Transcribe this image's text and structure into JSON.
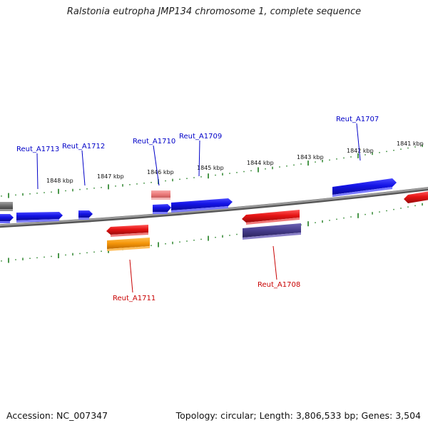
{
  "title": "Ralstonia eutropha JMP134 chromosome 1, complete sequence",
  "footer": {
    "accession": "Accession: NC_007347",
    "summary": "Topology: circular; Length: 3,806,533 bp; Genes: 3,504"
  },
  "colors": {
    "forward_gene": "#1414e6",
    "reverse_gene": "#e61414",
    "reverse_gene_light": "#ee7d7d",
    "reverse_gene_orange": "#f5960a",
    "reverse_gene_purple": "#463c8c",
    "forward_gene_gray": "#6e6e6e",
    "backbone": "#808080",
    "ticks": "#1e7d1e",
    "label_forward": "#0000c8",
    "label_reverse": "#c80000"
  },
  "kbp_labels": [
    "1848 kbp",
    "1847 kbp",
    "1846 kbp",
    "1845 kbp",
    "1844 kbp",
    "1843 kbp",
    "1842 kbp",
    "1841 kbp"
  ],
  "gene_labels": [
    {
      "name": "Reut_A1713",
      "strand": "forward"
    },
    {
      "name": "Reut_A1712",
      "strand": "forward"
    },
    {
      "name": "Reut_A1710",
      "strand": "forward"
    },
    {
      "name": "Reut_A1709",
      "strand": "forward"
    },
    {
      "name": "Reut_A1707",
      "strand": "forward"
    },
    {
      "name": "Reut_A1711",
      "strand": "reverse"
    },
    {
      "name": "Reut_A1708",
      "strand": "reverse"
    }
  ]
}
